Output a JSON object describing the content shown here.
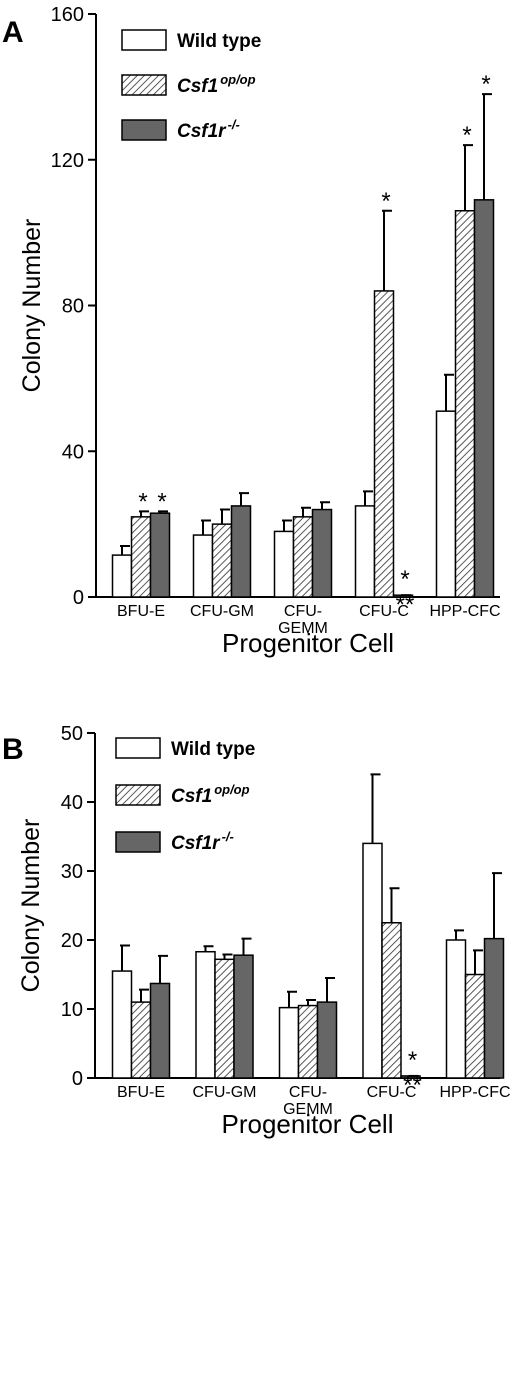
{
  "chart_data": [
    {
      "type": "bar",
      "panel": "A",
      "ylabel": "Colony Number",
      "xlabel": "Progenitor Cell",
      "categories": [
        "BFU-E",
        "CFU-GM",
        "CFU-\nGEMM",
        "CFU-C",
        "HPP-CFC"
      ],
      "ylim": [
        0,
        160
      ],
      "yticks": [
        0,
        40,
        80,
        120,
        160
      ],
      "series": [
        {
          "name": "Wild type",
          "color": "#ffffff",
          "values": [
            11.5,
            17,
            18,
            25,
            51
          ],
          "errors": [
            2.5,
            4,
            3,
            4,
            10
          ],
          "notes": [
            null,
            null,
            null,
            null,
            null
          ]
        },
        {
          "name": "Csf1",
          "name_sup": "op/op",
          "color": "#ffffff",
          "pattern": "hatch",
          "values": [
            22,
            20,
            22,
            84,
            106
          ],
          "errors": [
            1.5,
            4,
            2.5,
            22,
            18
          ],
          "notes": [
            "*",
            null,
            null,
            "*",
            "*"
          ]
        },
        {
          "name": "Csf1r",
          "name_sup": "-/-",
          "color": "#666666",
          "values": [
            23,
            25,
            24,
            0.5,
            109
          ],
          "errors": [
            0.5,
            3.5,
            2,
            0,
            29
          ],
          "notes": [
            "*",
            null,
            null,
            "*\n**",
            "*"
          ]
        }
      ]
    },
    {
      "type": "bar",
      "panel": "B",
      "ylabel": "Colony Number",
      "xlabel": "Progenitor Cell",
      "categories": [
        "BFU-E",
        "CFU-GM",
        "CFU-\nGEMM",
        "CFU-C",
        "HPP-CFC"
      ],
      "ylim": [
        0,
        50
      ],
      "yticks": [
        0,
        10,
        20,
        30,
        40,
        50
      ],
      "series": [
        {
          "name": "Wild type",
          "color": "#ffffff",
          "values": [
            15.5,
            18.3,
            10.2,
            34,
            20
          ],
          "errors": [
            3.7,
            0.8,
            2.3,
            10,
            1.4
          ],
          "notes": [
            null,
            null,
            null,
            null,
            null
          ]
        },
        {
          "name": "Csf1",
          "name_sup": "op/op",
          "color": "#ffffff",
          "pattern": "hatch",
          "values": [
            11,
            17.2,
            10.5,
            22.5,
            15
          ],
          "errors": [
            1.8,
            0.7,
            0.8,
            5,
            3.5
          ],
          "notes": [
            null,
            null,
            null,
            null,
            null
          ]
        },
        {
          "name": "Csf1r",
          "name_sup": "-/-",
          "color": "#666666",
          "values": [
            13.7,
            17.8,
            11,
            0.3,
            20.2
          ],
          "errors": [
            4,
            2.4,
            3.5,
            0,
            9.5
          ],
          "notes": [
            null,
            null,
            null,
            "*\n**",
            null
          ]
        }
      ]
    }
  ]
}
